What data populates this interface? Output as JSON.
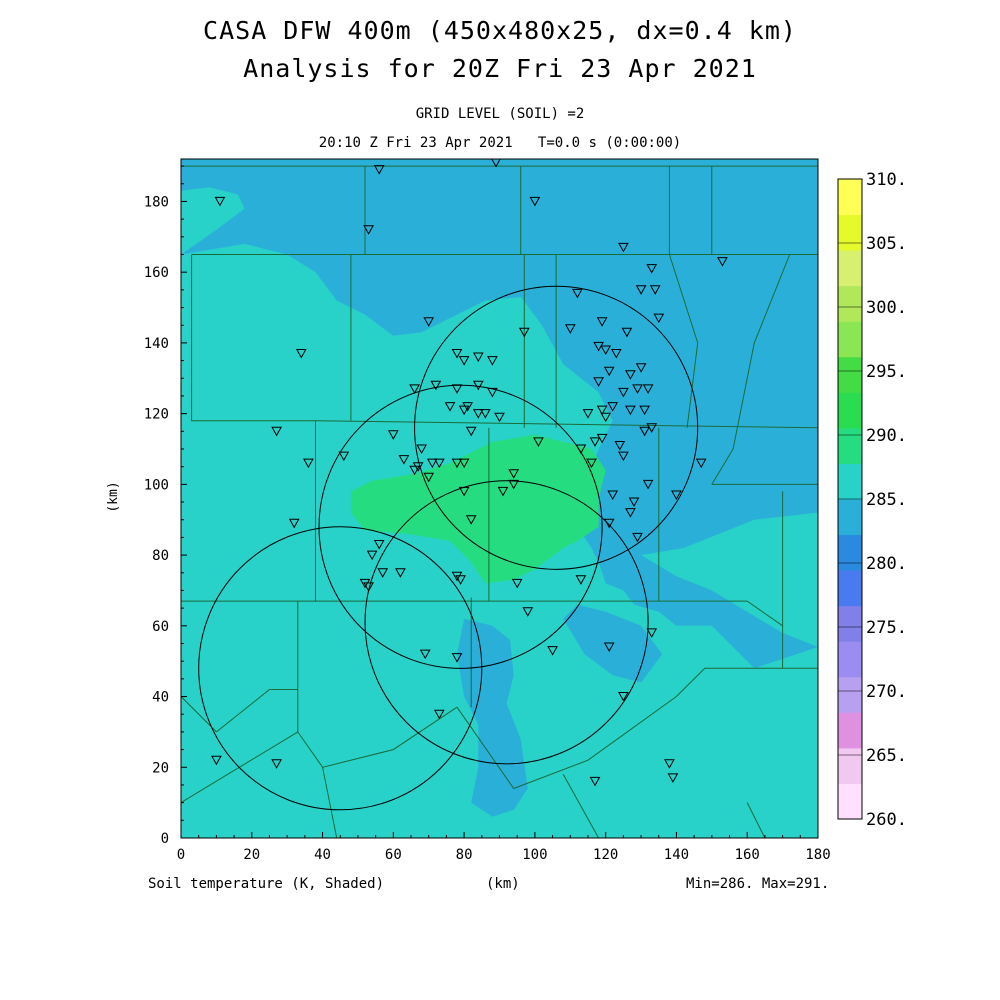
{
  "header": {
    "title_line1": "CASA DFW 400m (450x480x25, dx=0.4 km)",
    "title_line2": "Analysis for 20Z Fri 23 Apr 2021",
    "subtitle_line1": "GRID LEVEL (SOIL) =2",
    "subtitle_line2": "20:10 Z Fri 23 Apr 2021   T=0.0 s (0:00:00)"
  },
  "footer": {
    "variable_label": "Soil temperature (K, Shaded)",
    "x_unit": "(km)",
    "min_max": "Min=286. Max=291."
  },
  "chart_data": {
    "type": "heatmap",
    "title": "CASA DFW 400m (450x480x25, dx=0.4 km)",
    "xlabel": "(km)",
    "ylabel": "(km)",
    "xlim": [
      0,
      180
    ],
    "ylim": [
      0,
      192
    ],
    "x_ticks": [
      0,
      20,
      40,
      60,
      80,
      100,
      120,
      140,
      160,
      180
    ],
    "y_ticks": [
      0,
      20,
      40,
      60,
      80,
      100,
      120,
      140,
      160,
      180
    ],
    "x_tick_labels": [
      "0",
      "20",
      "40",
      "60",
      "80",
      "100",
      "120",
      "140",
      "160",
      "180"
    ],
    "y_tick_labels": [
      "0",
      "20",
      "40",
      "60",
      "80",
      "100",
      "120",
      "140",
      "160",
      "180"
    ],
    "colorbar": {
      "levels": [
        260,
        265,
        270,
        275,
        280,
        285,
        290,
        295,
        300,
        305,
        310
      ],
      "labels": [
        "260.",
        "265.",
        "270.",
        "275.",
        "280.",
        "285.",
        "290.",
        "295.",
        "300.",
        "305.",
        "310."
      ],
      "colors": [
        "#ffe0ff",
        "#f0c8f0",
        "#e090e0",
        "#b8a0f0",
        "#9a8cf0",
        "#8080e8",
        "#4a7af0",
        "#2a8ae0",
        "#2ab0d8",
        "#28d2c8",
        "#26dc80",
        "#2add50",
        "#44dc44",
        "#8ae652",
        "#b0e85a",
        "#d8f070",
        "#e4fa2a",
        "#ffff55"
      ]
    },
    "regions": [
      {
        "level": 285,
        "color": "#2ab0d8",
        "polygon": [
          [
            0,
            0
          ],
          [
            180,
            0
          ],
          [
            180,
            192
          ],
          [
            0,
            192
          ]
        ]
      },
      {
        "level": 288,
        "color": "#28d2c8",
        "polygon": [
          [
            0,
            0
          ],
          [
            180,
            0
          ],
          [
            180,
            54
          ],
          [
            162,
            48
          ],
          [
            150,
            60
          ],
          [
            140,
            60
          ],
          [
            135,
            64
          ],
          [
            128,
            66
          ],
          [
            125,
            70
          ],
          [
            120,
            72
          ],
          [
            118,
            78
          ],
          [
            116,
            82
          ],
          [
            112,
            88
          ],
          [
            114,
            100
          ],
          [
            118,
            110
          ],
          [
            122,
            118
          ],
          [
            118,
            126
          ],
          [
            108,
            134
          ],
          [
            102,
            145
          ],
          [
            96,
            153
          ],
          [
            86,
            152
          ],
          [
            78,
            148
          ],
          [
            68,
            143
          ],
          [
            60,
            142
          ],
          [
            52,
            148
          ],
          [
            44,
            152
          ],
          [
            38,
            160
          ],
          [
            30,
            165
          ],
          [
            18,
            168
          ],
          [
            0,
            165
          ]
        ]
      },
      {
        "level": 288,
        "color": "#28d2c8",
        "polygon": [
          [
            0,
            165
          ],
          [
            10,
            172
          ],
          [
            18,
            178
          ],
          [
            16,
            182
          ],
          [
            8,
            184
          ],
          [
            0,
            183
          ]
        ]
      },
      {
        "level": 288,
        "color": "#28d2c8",
        "polygon": [
          [
            130,
            80
          ],
          [
            142,
            82
          ],
          [
            152,
            86
          ],
          [
            162,
            90
          ],
          [
            180,
            92
          ],
          [
            180,
            54
          ],
          [
            170,
            58
          ],
          [
            160,
            64
          ],
          [
            150,
            70
          ],
          [
            140,
            74
          ]
        ]
      },
      {
        "level": 285,
        "color": "#2ab0d8",
        "polygon": [
          [
            80,
            62
          ],
          [
            88,
            60
          ],
          [
            93,
            56
          ],
          [
            94,
            46
          ],
          [
            92,
            38
          ],
          [
            96,
            28
          ],
          [
            98,
            14
          ],
          [
            94,
            8
          ],
          [
            88,
            6
          ],
          [
            82,
            10
          ],
          [
            84,
            20
          ],
          [
            84,
            32
          ],
          [
            80,
            40
          ],
          [
            78,
            52
          ]
        ]
      },
      {
        "level": 285,
        "color": "#2ab0d8",
        "polygon": [
          [
            108,
            62
          ],
          [
            114,
            52
          ],
          [
            122,
            46
          ],
          [
            130,
            44
          ],
          [
            136,
            52
          ],
          [
            130,
            60
          ],
          [
            120,
            64
          ],
          [
            112,
            66
          ]
        ]
      },
      {
        "level": 290,
        "color": "#26dc80",
        "polygon": [
          [
            48,
            98
          ],
          [
            54,
            101
          ],
          [
            66,
            103
          ],
          [
            76,
            106
          ],
          [
            88,
            112
          ],
          [
            100,
            114
          ],
          [
            108,
            112
          ],
          [
            116,
            110
          ],
          [
            120,
            104
          ],
          [
            118,
            96
          ],
          [
            118,
            88
          ],
          [
            112,
            84
          ],
          [
            108,
            82
          ],
          [
            100,
            76
          ],
          [
            94,
            73
          ],
          [
            86,
            72
          ],
          [
            82,
            78
          ],
          [
            76,
            84
          ],
          [
            64,
            86
          ],
          [
            52,
            87
          ],
          [
            48,
            92
          ]
        ]
      }
    ],
    "counties": [
      [
        [
          0,
          190
        ],
        [
          180,
          190
        ]
      ],
      [
        [
          3,
          165
        ],
        [
          180,
          165
        ]
      ],
      [
        [
          3,
          165
        ],
        [
          3,
          118
        ],
        [
          38,
          118
        ],
        [
          180,
          116
        ]
      ],
      [
        [
          38,
          118
        ],
        [
          38,
          67
        ],
        [
          0,
          67
        ]
      ],
      [
        [
          38,
          67
        ],
        [
          160,
          67
        ]
      ],
      [
        [
          135,
          116
        ],
        [
          135,
          67
        ]
      ],
      [
        [
          87,
          116
        ],
        [
          87,
          67
        ]
      ],
      [
        [
          52,
          190
        ],
        [
          52,
          165
        ]
      ],
      [
        [
          96,
          190
        ],
        [
          96,
          165
        ]
      ],
      [
        [
          150,
          190
        ],
        [
          150,
          165
        ]
      ],
      [
        [
          138,
          190
        ],
        [
          138,
          165
        ]
      ],
      [
        [
          48,
          165
        ],
        [
          48,
          118
        ]
      ],
      [
        [
          97,
          165
        ],
        [
          97,
          116
        ]
      ],
      [
        [
          106,
          165
        ],
        [
          106,
          116
        ]
      ],
      [
        [
          138,
          165
        ],
        [
          146,
          140
        ],
        [
          143,
          116
        ]
      ],
      [
        [
          172,
          165
        ],
        [
          162,
          140
        ],
        [
          156,
          110
        ],
        [
          150,
          100
        ]
      ],
      [
        [
          150,
          100
        ],
        [
          180,
          100
        ]
      ],
      [
        [
          170,
          98
        ],
        [
          170,
          48
        ],
        [
          180,
          48
        ]
      ],
      [
        [
          160,
          67
        ],
        [
          170,
          60
        ]
      ],
      [
        [
          33,
          67
        ],
        [
          33,
          30
        ]
      ],
      [
        [
          0,
          40
        ],
        [
          10,
          30
        ]
      ],
      [
        [
          10,
          30
        ],
        [
          25,
          42
        ],
        [
          33,
          42
        ]
      ],
      [
        [
          33,
          30
        ],
        [
          0,
          10
        ]
      ],
      [
        [
          33,
          30
        ],
        [
          40,
          20
        ],
        [
          60,
          25
        ],
        [
          78,
          37
        ]
      ],
      [
        [
          82,
          68
        ],
        [
          82,
          37
        ]
      ],
      [
        [
          78,
          37
        ],
        [
          94,
          14
        ],
        [
          115,
          22
        ],
        [
          140,
          40
        ],
        [
          148,
          48
        ],
        [
          160,
          48
        ],
        [
          170,
          48
        ]
      ],
      [
        [
          40,
          20
        ],
        [
          44,
          0
        ]
      ],
      [
        [
          108,
          18
        ],
        [
          118,
          0
        ]
      ],
      [
        [
          160,
          10
        ],
        [
          165,
          0
        ]
      ]
    ],
    "radar_rings": [
      {
        "center": [
          106,
          116
        ],
        "radius": 40
      },
      {
        "center": [
          79,
          88
        ],
        "radius": 40
      },
      {
        "center": [
          92,
          61
        ],
        "radius": 40
      },
      {
        "center": [
          45,
          48
        ],
        "radius": 40
      }
    ],
    "stations": [
      [
        11,
        180
      ],
      [
        56,
        189
      ],
      [
        89,
        191
      ],
      [
        100,
        180
      ],
      [
        53,
        172
      ],
      [
        125,
        167
      ],
      [
        153,
        163
      ],
      [
        133,
        161
      ],
      [
        130,
        155
      ],
      [
        134,
        155
      ],
      [
        112,
        154
      ],
      [
        119,
        146
      ],
      [
        135,
        147
      ],
      [
        70,
        146
      ],
      [
        110,
        144
      ],
      [
        97,
        143
      ],
      [
        126,
        143
      ],
      [
        34,
        137
      ],
      [
        118,
        139
      ],
      [
        120,
        138
      ],
      [
        78,
        137
      ],
      [
        80,
        135
      ],
      [
        84,
        136
      ],
      [
        88,
        135
      ],
      [
        123,
        137
      ],
      [
        127,
        131
      ],
      [
        130,
        133
      ],
      [
        121,
        132
      ],
      [
        118,
        129
      ],
      [
        66,
        127
      ],
      [
        72,
        128
      ],
      [
        78,
        127
      ],
      [
        84,
        128
      ],
      [
        88,
        126
      ],
      [
        125,
        126
      ],
      [
        129,
        127
      ],
      [
        132,
        127
      ],
      [
        76,
        122
      ],
      [
        80,
        121
      ],
      [
        81,
        122
      ],
      [
        84,
        120
      ],
      [
        86,
        120
      ],
      [
        90,
        119
      ],
      [
        119,
        121
      ],
      [
        122,
        122
      ],
      [
        127,
        121
      ],
      [
        131,
        121
      ],
      [
        115,
        120
      ],
      [
        120,
        119
      ],
      [
        60,
        114
      ],
      [
        82,
        115
      ],
      [
        101,
        112
      ],
      [
        27,
        115
      ],
      [
        119,
        113
      ],
      [
        117,
        112
      ],
      [
        124,
        111
      ],
      [
        131,
        115
      ],
      [
        133,
        116
      ],
      [
        68,
        110
      ],
      [
        46,
        108
      ],
      [
        113,
        110
      ],
      [
        125,
        108
      ],
      [
        63,
        107
      ],
      [
        36,
        106
      ],
      [
        71,
        106
      ],
      [
        73,
        106
      ],
      [
        78,
        106
      ],
      [
        80,
        106
      ],
      [
        116,
        106
      ],
      [
        147,
        106
      ],
      [
        66,
        104
      ],
      [
        67,
        105
      ],
      [
        70,
        102
      ],
      [
        94,
        103
      ],
      [
        132,
        100
      ],
      [
        94,
        100
      ],
      [
        80,
        98
      ],
      [
        91,
        98
      ],
      [
        122,
        97
      ],
      [
        140,
        97
      ],
      [
        128,
        95
      ],
      [
        127,
        92
      ],
      [
        32,
        89
      ],
      [
        82,
        90
      ],
      [
        121,
        89
      ],
      [
        129,
        85
      ],
      [
        56,
        83
      ],
      [
        54,
        80
      ],
      [
        57,
        75
      ],
      [
        62,
        75
      ],
      [
        52,
        72
      ],
      [
        53,
        71
      ],
      [
        78,
        74
      ],
      [
        79,
        73
      ],
      [
        95,
        72
      ],
      [
        113,
        73
      ],
      [
        98,
        64
      ],
      [
        133,
        58
      ],
      [
        121,
        54
      ],
      [
        69,
        52
      ],
      [
        78,
        51
      ],
      [
        105,
        53
      ],
      [
        125,
        40
      ],
      [
        73,
        35
      ],
      [
        10,
        22
      ],
      [
        27,
        21
      ],
      [
        138,
        21
      ],
      [
        117,
        16
      ],
      [
        139,
        17
      ]
    ]
  }
}
